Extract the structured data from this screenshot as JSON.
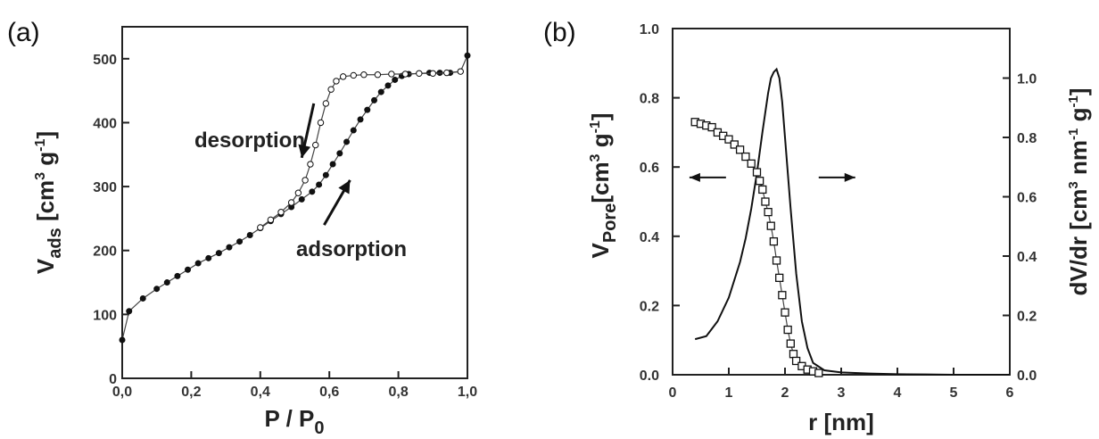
{
  "chart_data": [
    {
      "type": "line",
      "panel_label": "(a)",
      "xlabel": "P / P0",
      "xlabel_parts": {
        "main": "P / P",
        "sub": "0"
      },
      "ylabel": "Vads [cm3 g-1]",
      "ylabel_parts": {
        "v": "V",
        "v_sub": "ads",
        "bracket_open": " [cm",
        "sup3": "3",
        "g": " g",
        "supm1": "-1",
        "bracket_close": "]"
      },
      "xlim": [
        0,
        1.0
      ],
      "ylim": [
        0,
        550
      ],
      "x_ticks": [
        0.0,
        0.2,
        0.4,
        0.6,
        0.8,
        1.0
      ],
      "x_tick_labels": [
        "0,0",
        "0,2",
        "0,4",
        "0,6",
        "0,8",
        "1,0"
      ],
      "y_ticks": [
        0,
        100,
        200,
        300,
        400,
        500
      ],
      "y_tick_labels": [
        "0",
        "100",
        "200",
        "300",
        "400",
        "500"
      ],
      "grid": false,
      "annotations": [
        {
          "text": "desorption",
          "near_x": 0.2,
          "near_y": 340
        },
        {
          "text": "adsorption",
          "near_x": 0.72,
          "near_y": 195
        }
      ],
      "arrows": [
        {
          "from": [
            0.555,
            430
          ],
          "to": [
            0.52,
            345
          ]
        },
        {
          "from": [
            0.585,
            240
          ],
          "to": [
            0.66,
            310
          ]
        }
      ],
      "series": [
        {
          "name": "adsorption",
          "marker": "filled-circle",
          "x": [
            0.0,
            0.02,
            0.06,
            0.1,
            0.13,
            0.16,
            0.19,
            0.22,
            0.25,
            0.28,
            0.31,
            0.34,
            0.37,
            0.4,
            0.43,
            0.46,
            0.49,
            0.52,
            0.55,
            0.57,
            0.59,
            0.61,
            0.63,
            0.65,
            0.67,
            0.69,
            0.71,
            0.73,
            0.75,
            0.77,
            0.79,
            0.81,
            0.83,
            0.86,
            0.89,
            0.92,
            0.95,
            0.98,
            1.0
          ],
          "y": [
            60,
            105,
            125,
            140,
            150,
            160,
            170,
            180,
            188,
            196,
            205,
            214,
            224,
            235,
            246,
            257,
            268,
            280,
            292,
            303,
            318,
            335,
            352,
            370,
            388,
            405,
            420,
            435,
            448,
            458,
            467,
            473,
            476,
            477,
            478,
            478,
            478,
            480,
            505
          ]
        },
        {
          "name": "desorption",
          "marker": "open-circle",
          "x": [
            0.4,
            0.43,
            0.46,
            0.49,
            0.51,
            0.53,
            0.545,
            0.56,
            0.575,
            0.59,
            0.605,
            0.62,
            0.64,
            0.67,
            0.7,
            0.74,
            0.78,
            0.82,
            0.86,
            0.9,
            0.94,
            0.98
          ],
          "y": [
            236,
            248,
            260,
            275,
            290,
            310,
            335,
            365,
            400,
            430,
            452,
            465,
            472,
            474,
            475,
            475,
            476,
            476,
            477,
            477,
            478,
            480
          ]
        }
      ]
    },
    {
      "type": "line",
      "panel_label": "(b)",
      "xlabel": "r [nm]",
      "ylabel": "VPore[cm3 g-1]",
      "ylabel_parts": {
        "v": "V",
        "v_sub": "Pore",
        "bracket_open": "[cm",
        "sup3": "3",
        "g": " g",
        "supm1": "-1",
        "bracket_close": "]"
      },
      "y2label": "dV/dr [cm3 nm-1 g-1]",
      "y2label_parts": {
        "main": "dV/dr [cm",
        "sup3": "3",
        "nm": " nm",
        "supm1a": "-1",
        "g": " g",
        "supm1b": "-1",
        "close": "]"
      },
      "xlim": [
        0,
        6
      ],
      "ylim": [
        0,
        1.0
      ],
      "y2lim": [
        0,
        1.167
      ],
      "x_ticks": [
        0,
        1,
        2,
        3,
        4,
        5,
        6
      ],
      "x_tick_labels": [
        "0",
        "1",
        "2",
        "3",
        "4",
        "5",
        "6"
      ],
      "y_ticks": [
        0.0,
        0.2,
        0.4,
        0.6,
        0.8,
        1.0
      ],
      "y_tick_labels": [
        "0.0",
        "0.2",
        "0.4",
        "0.6",
        "0.8",
        "1.0"
      ],
      "y2_ticks": [
        0.0,
        0.2,
        0.4,
        0.6,
        0.8,
        1.0
      ],
      "y2_tick_labels": [
        "0.0",
        "0.2",
        "0.4",
        "0.6",
        "0.8",
        "1.0"
      ],
      "grid": false,
      "direction_arrows": [
        {
          "direction": "left",
          "from_x": 0.95,
          "to_x": 0.3,
          "y": 0.57
        },
        {
          "direction": "right",
          "from_x": 2.6,
          "to_x": 3.25,
          "y": 0.57
        }
      ],
      "series": [
        {
          "name": "cumulative pore volume",
          "axis": "left",
          "marker": "open-square",
          "x": [
            0.4,
            0.5,
            0.6,
            0.7,
            0.8,
            0.9,
            1.0,
            1.1,
            1.2,
            1.3,
            1.4,
            1.5,
            1.55,
            1.6,
            1.65,
            1.7,
            1.75,
            1.8,
            1.85,
            1.9,
            1.95,
            2.0,
            2.05,
            2.1,
            2.15,
            2.2,
            2.3,
            2.4,
            2.5,
            2.6
          ],
          "y": [
            0.73,
            0.725,
            0.72,
            0.715,
            0.7,
            0.69,
            0.68,
            0.665,
            0.65,
            0.63,
            0.61,
            0.585,
            0.56,
            0.535,
            0.5,
            0.47,
            0.43,
            0.385,
            0.33,
            0.28,
            0.23,
            0.18,
            0.13,
            0.09,
            0.06,
            0.04,
            0.025,
            0.015,
            0.01,
            0.005
          ]
        },
        {
          "name": "pore size distribution",
          "axis": "right",
          "marker": "none",
          "x": [
            0.4,
            0.6,
            0.8,
            1.0,
            1.2,
            1.3,
            1.4,
            1.5,
            1.6,
            1.7,
            1.75,
            1.8,
            1.85,
            1.9,
            1.95,
            2.0,
            2.1,
            2.2,
            2.3,
            2.4,
            2.5,
            2.7,
            3.0,
            3.5,
            4.0,
            4.5,
            5.0,
            5.5,
            6.0
          ],
          "y": [
            0.12,
            0.13,
            0.18,
            0.26,
            0.38,
            0.46,
            0.56,
            0.68,
            0.82,
            0.95,
            1.0,
            1.02,
            1.03,
            1.0,
            0.92,
            0.8,
            0.56,
            0.34,
            0.18,
            0.09,
            0.04,
            0.015,
            0.008,
            0.004,
            0.002,
            0.001,
            0.0,
            0.0,
            0.0
          ]
        }
      ]
    }
  ]
}
